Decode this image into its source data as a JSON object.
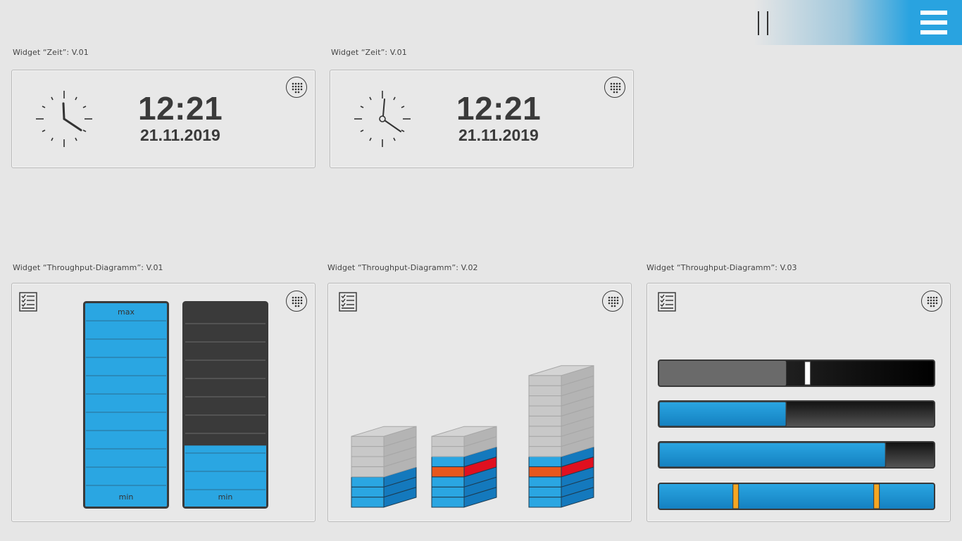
{
  "widgets": {
    "time_v01": {
      "label": "Widget “Zeit”: V.01",
      "time": "12:21",
      "date": "21.11.2019"
    },
    "time_v02": {
      "label": "Widget “Zeit”: V.01",
      "time": "12:21",
      "date": "21.11.2019"
    },
    "throughput_v01": {
      "label": "Widget “Throughput-Diagramm”: V.01",
      "tank1_max": "max",
      "tank1_min": "min",
      "tank2_min": "min",
      "tank2_fill": 0.3
    },
    "throughput_v02": {
      "label": "Widget “Throughput-Diagramm”: V.02"
    },
    "throughput_v03": {
      "label": "Widget “Throughput-Diagramm”: V.03",
      "bars": [
        {
          "kind": "slider",
          "fill": 0.46,
          "handle": 0.54
        },
        {
          "kind": "progress",
          "fill": 0.46
        },
        {
          "kind": "progress",
          "fill": 0.82
        },
        {
          "kind": "range",
          "marker_a": 0.28,
          "marker_b": 0.79
        }
      ]
    }
  },
  "icons": {
    "pause": "pause-icon",
    "menu": "hamburger-menu-icon",
    "grid": "grid-dots-icon",
    "list": "checklist-icon",
    "clock": "analog-clock-icon"
  },
  "colors": {
    "accent": "#29a3e0",
    "blue": "#2aa6e2",
    "dark": "#3a3a3a",
    "alert_red": "#e0101f",
    "alert_orange": "#e8571c",
    "marker": "#f5a623"
  }
}
